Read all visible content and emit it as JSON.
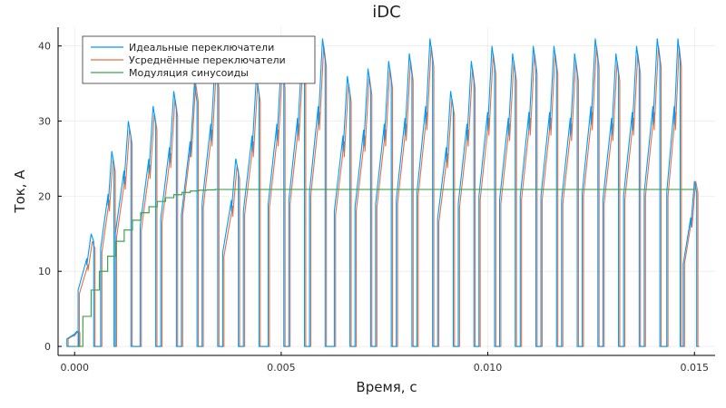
{
  "chart_data": {
    "type": "line",
    "title": "iDC",
    "xlabel": "Время, с",
    "ylabel": "Ток, А",
    "xlim": [
      -0.0004,
      0.0155
    ],
    "ylim": [
      -1.2,
      42.5
    ],
    "xticks": [
      0.0,
      0.005,
      0.01,
      0.015
    ],
    "xtick_labels": [
      "0.000",
      "0.005",
      "0.010",
      "0.015"
    ],
    "yticks": [
      0,
      10,
      20,
      30,
      40
    ],
    "ytick_labels": [
      "0",
      "10",
      "20",
      "30",
      "40"
    ],
    "grid": true,
    "legend_position": "top-left",
    "series": [
      {
        "name": "Идеальные переключатели",
        "color": "#009af9",
        "style": "sawtooth-pulses",
        "x": [
          5e-05,
          0.0004,
          0.0009,
          0.0013,
          0.0019,
          0.0024,
          0.0029,
          0.0034,
          0.0039,
          0.0044,
          0.005,
          0.0055,
          0.006,
          0.0066,
          0.0071,
          0.0076,
          0.0081,
          0.0086,
          0.0091,
          0.0096,
          0.0101,
          0.0106,
          0.0111,
          0.0116,
          0.0121,
          0.0126,
          0.0131,
          0.0136,
          0.0141,
          0.0146,
          0.015
        ],
        "values": [
          2,
          15,
          26,
          30,
          32,
          34,
          35,
          38,
          25,
          36,
          38,
          39,
          41,
          36,
          37,
          38,
          39,
          41,
          34,
          38,
          40,
          39,
          40,
          40,
          39,
          41,
          39,
          40,
          41,
          41,
          22
        ]
      },
      {
        "name": "Усреднённые переключатели",
        "color": "#e26f46",
        "style": "sawtooth-pulses",
        "x": [
          5e-05,
          0.0004,
          0.0009,
          0.0013,
          0.0019,
          0.0024,
          0.0029,
          0.0034,
          0.0039,
          0.0044,
          0.005,
          0.0055,
          0.006,
          0.0066,
          0.0071,
          0.0076,
          0.0081,
          0.0086,
          0.0091,
          0.0096,
          0.0101,
          0.0106,
          0.0111,
          0.0116,
          0.0121,
          0.0126,
          0.0131,
          0.0136,
          0.0141,
          0.0146,
          0.015
        ],
        "values": [
          2,
          14,
          25,
          29,
          31,
          33,
          35,
          37,
          24,
          35,
          37,
          38,
          40,
          35,
          36,
          37,
          38,
          40,
          33,
          37,
          39,
          38,
          39,
          39,
          38,
          40,
          38,
          39,
          40,
          40,
          22
        ]
      },
      {
        "name": "Модуляция синусоиды",
        "color": "#3da44d",
        "style": "step",
        "x": [
          0.0,
          0.0002,
          0.0004,
          0.0006,
          0.0008,
          0.001,
          0.0012,
          0.0014,
          0.0016,
          0.0018,
          0.002,
          0.0022,
          0.0024,
          0.0026,
          0.0028,
          0.003,
          0.0032,
          0.0034,
          0.0036,
          0.004,
          0.005,
          0.015
        ],
        "values": [
          0,
          4,
          7.5,
          10,
          12,
          14,
          15.5,
          16.8,
          17.8,
          18.6,
          19.3,
          19.8,
          20.2,
          20.5,
          20.7,
          20.8,
          20.85,
          20.9,
          20.9,
          20.9,
          20.9,
          20.9
        ]
      }
    ]
  }
}
